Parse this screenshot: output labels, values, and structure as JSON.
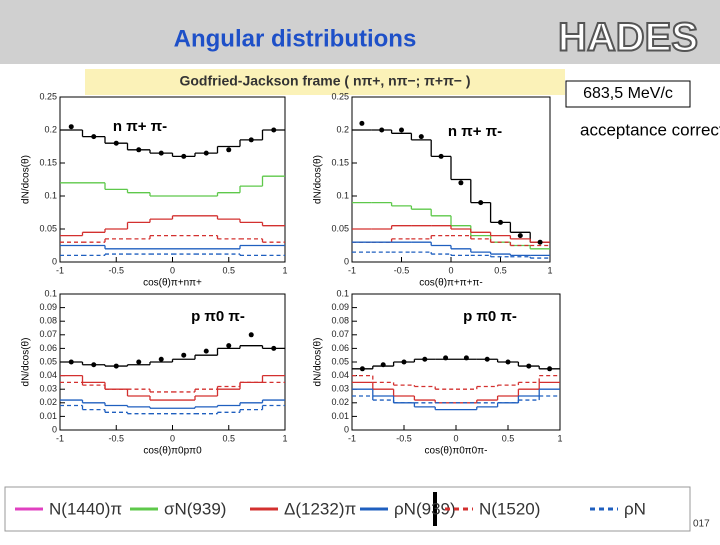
{
  "header": {
    "title": "Angular distributions",
    "logo": "HADES",
    "frame": "Godfried-Jackson frame ( nπ+, nπ−; π+π− )",
    "momentum": "683,5 MeV/c",
    "note": "acceptance corrected",
    "footer": "017"
  },
  "legend": [
    {
      "name": "N(1440)π",
      "color": "#e040c0",
      "dash": false
    },
    {
      "name": "σN(939)",
      "color": "#5ec84a",
      "dash": false
    },
    {
      "name": "Δ(1232)π",
      "color": "#d3302f",
      "dash": false
    },
    {
      "name": "ρN(939)",
      "color": "#1f5fbf",
      "dash": false
    },
    {
      "name": "N(1520)",
      "color": "#d3302f",
      "dash": true
    },
    {
      "name": "ρN",
      "color": "#1f5fbf",
      "dash": true
    }
  ],
  "chart_data": [
    {
      "type": "histogram",
      "label": "n π+ π-",
      "xlabel": "cos(θ)π+nπ+",
      "ylabel": "dN/dcos(θ)",
      "bins": [
        -1,
        -0.8,
        -0.6,
        -0.4,
        -0.2,
        0,
        0.2,
        0.4,
        0.6,
        0.8,
        1
      ],
      "xlim": [
        -1,
        1
      ],
      "xticks": [
        -1,
        -0.5,
        0,
        0.5,
        1
      ],
      "ylim": [
        0,
        0.25
      ],
      "yticks": [
        0,
        0.05,
        0.1,
        0.15,
        0.2,
        0.25
      ],
      "series": [
        {
          "color": "#000000",
          "dash": false,
          "values": [
            0.2,
            0.19,
            0.18,
            0.17,
            0.165,
            0.16,
            0.165,
            0.175,
            0.185,
            0.2
          ]
        },
        {
          "color": "#5ec84a",
          "dash": false,
          "values": [
            0.12,
            0.12,
            0.11,
            0.105,
            0.1,
            0.1,
            0.1,
            0.105,
            0.115,
            0.13
          ]
        },
        {
          "color": "#d3302f",
          "dash": false,
          "values": [
            0.04,
            0.045,
            0.05,
            0.06,
            0.065,
            0.07,
            0.07,
            0.065,
            0.06,
            0.055
          ]
        },
        {
          "color": "#d3302f",
          "dash": true,
          "values": [
            0.03,
            0.03,
            0.035,
            0.035,
            0.04,
            0.04,
            0.04,
            0.035,
            0.035,
            0.03
          ]
        },
        {
          "color": "#1f5fbf",
          "dash": false,
          "values": [
            0.025,
            0.025,
            0.02,
            0.02,
            0.02,
            0.02,
            0.02,
            0.02,
            0.025,
            0.025
          ]
        },
        {
          "color": "#1f5fbf",
          "dash": true,
          "values": [
            0.01,
            0.01,
            0.012,
            0.012,
            0.012,
            0.012,
            0.012,
            0.012,
            0.01,
            0.01
          ]
        }
      ],
      "points": {
        "x": [
          -0.9,
          -0.7,
          -0.5,
          -0.3,
          -0.1,
          0.1,
          0.3,
          0.5,
          0.7,
          0.9
        ],
        "values": [
          0.205,
          0.19,
          0.18,
          0.17,
          0.165,
          0.16,
          0.165,
          0.17,
          0.185,
          0.2
        ]
      }
    },
    {
      "type": "histogram",
      "label": "n π+ π-",
      "xlabel": "cos(θ)π+π+π-",
      "ylabel": "dN/dcos(θ)",
      "bins": [
        -1,
        -0.8,
        -0.6,
        -0.4,
        -0.2,
        0,
        0.2,
        0.4,
        0.6,
        0.8,
        1
      ],
      "xlim": [
        -1,
        1
      ],
      "xticks": [
        -1,
        -0.5,
        0,
        0.5,
        1
      ],
      "ylim": [
        0,
        0.25
      ],
      "yticks": [
        0,
        0.05,
        0.1,
        0.15,
        0.2,
        0.25
      ],
      "series": [
        {
          "color": "#000000",
          "dash": false,
          "values": [
            0.2,
            0.2,
            0.195,
            0.185,
            0.16,
            0.125,
            0.09,
            0.06,
            0.045,
            0.03
          ]
        },
        {
          "color": "#5ec84a",
          "dash": false,
          "values": [
            0.09,
            0.09,
            0.085,
            0.08,
            0.07,
            0.055,
            0.04,
            0.03,
            0.025,
            0.02
          ]
        },
        {
          "color": "#d3302f",
          "dash": false,
          "values": [
            0.05,
            0.05,
            0.055,
            0.055,
            0.055,
            0.05,
            0.045,
            0.04,
            0.035,
            0.03
          ]
        },
        {
          "color": "#d3302f",
          "dash": true,
          "values": [
            0.03,
            0.03,
            0.035,
            0.035,
            0.04,
            0.04,
            0.035,
            0.03,
            0.025,
            0.025
          ]
        },
        {
          "color": "#1f5fbf",
          "dash": false,
          "values": [
            0.03,
            0.03,
            0.03,
            0.03,
            0.025,
            0.02,
            0.015,
            0.012,
            0.01,
            0.01
          ]
        },
        {
          "color": "#1f5fbf",
          "dash": true,
          "values": [
            0.015,
            0.015,
            0.015,
            0.015,
            0.012,
            0.01,
            0.01,
            0.008,
            0.008,
            0.006
          ]
        }
      ],
      "points": {
        "x": [
          -0.9,
          -0.7,
          -0.5,
          -0.3,
          -0.1,
          0.1,
          0.3,
          0.5,
          0.7,
          0.9
        ],
        "values": [
          0.21,
          0.2,
          0.2,
          0.19,
          0.16,
          0.12,
          0.09,
          0.06,
          0.04,
          0.03
        ]
      }
    },
    {
      "type": "histogram",
      "label": "p π0 π-",
      "xlabel": "cos(θ)π0pπ0",
      "ylabel": "dN/dcos(θ)",
      "bins": [
        -1,
        -0.8,
        -0.6,
        -0.4,
        -0.2,
        0,
        0.2,
        0.4,
        0.6,
        0.8,
        1
      ],
      "xlim": [
        -1,
        1
      ],
      "xticks": [
        -1,
        -0.5,
        0,
        0.5,
        1
      ],
      "ylim": [
        0,
        0.1
      ],
      "yticks": [
        0,
        0.01,
        0.02,
        0.03,
        0.04,
        0.05,
        0.06,
        0.07,
        0.08,
        0.09,
        0.1
      ],
      "series": [
        {
          "color": "#000000",
          "dash": false,
          "values": [
            0.05,
            0.048,
            0.047,
            0.048,
            0.05,
            0.052,
            0.055,
            0.06,
            0.062,
            0.06
          ]
        },
        {
          "color": "#d3302f",
          "dash": false,
          "values": [
            0.04,
            0.035,
            0.03,
            0.025,
            0.022,
            0.022,
            0.025,
            0.03,
            0.035,
            0.04
          ]
        },
        {
          "color": "#d3302f",
          "dash": true,
          "values": [
            0.035,
            0.033,
            0.03,
            0.03,
            0.028,
            0.028,
            0.03,
            0.032,
            0.035,
            0.035
          ]
        },
        {
          "color": "#1f5fbf",
          "dash": false,
          "values": [
            0.022,
            0.02,
            0.018,
            0.017,
            0.016,
            0.016,
            0.017,
            0.018,
            0.02,
            0.022
          ]
        },
        {
          "color": "#1f5fbf",
          "dash": true,
          "values": [
            0.018,
            0.015,
            0.013,
            0.012,
            0.012,
            0.012,
            0.012,
            0.013,
            0.015,
            0.018
          ]
        }
      ],
      "points": {
        "x": [
          -0.9,
          -0.7,
          -0.5,
          -0.3,
          -0.1,
          0.1,
          0.3,
          0.5,
          0.7,
          0.9
        ],
        "values": [
          0.05,
          0.048,
          0.047,
          0.05,
          0.052,
          0.055,
          0.058,
          0.062,
          0.07,
          0.06
        ]
      }
    },
    {
      "type": "histogram",
      "label": "p π0 π-",
      "xlabel": "cos(θ)π0π0π-",
      "ylabel": "dN/dcos(θ)",
      "bins": [
        -1,
        -0.8,
        -0.6,
        -0.4,
        -0.2,
        0,
        0.2,
        0.4,
        0.6,
        0.8,
        1
      ],
      "xlim": [
        -1,
        1
      ],
      "xticks": [
        -1,
        -0.5,
        0,
        0.5,
        1
      ],
      "ylim": [
        0,
        0.1
      ],
      "yticks": [
        0,
        0.01,
        0.02,
        0.03,
        0.04,
        0.05,
        0.06,
        0.07,
        0.08,
        0.09,
        0.1
      ],
      "series": [
        {
          "color": "#000000",
          "dash": false,
          "values": [
            0.045,
            0.047,
            0.05,
            0.052,
            0.052,
            0.052,
            0.052,
            0.05,
            0.047,
            0.045
          ]
        },
        {
          "color": "#d3302f",
          "dash": false,
          "values": [
            0.035,
            0.03,
            0.025,
            0.022,
            0.02,
            0.02,
            0.022,
            0.025,
            0.03,
            0.035
          ]
        },
        {
          "color": "#d3302f",
          "dash": true,
          "values": [
            0.04,
            0.035,
            0.033,
            0.032,
            0.03,
            0.03,
            0.032,
            0.033,
            0.035,
            0.04
          ]
        },
        {
          "color": "#1f5fbf",
          "dash": false,
          "values": [
            0.03,
            0.025,
            0.02,
            0.017,
            0.015,
            0.015,
            0.017,
            0.02,
            0.025,
            0.03
          ]
        },
        {
          "color": "#1f5fbf",
          "dash": true,
          "values": [
            0.025,
            0.022,
            0.02,
            0.02,
            0.02,
            0.02,
            0.02,
            0.02,
            0.022,
            0.025
          ]
        }
      ],
      "points": {
        "x": [
          -0.9,
          -0.7,
          -0.5,
          -0.3,
          -0.1,
          0.1,
          0.3,
          0.5,
          0.7,
          0.9
        ],
        "values": [
          0.045,
          0.048,
          0.05,
          0.052,
          0.053,
          0.053,
          0.052,
          0.05,
          0.047,
          0.045
        ]
      }
    }
  ]
}
